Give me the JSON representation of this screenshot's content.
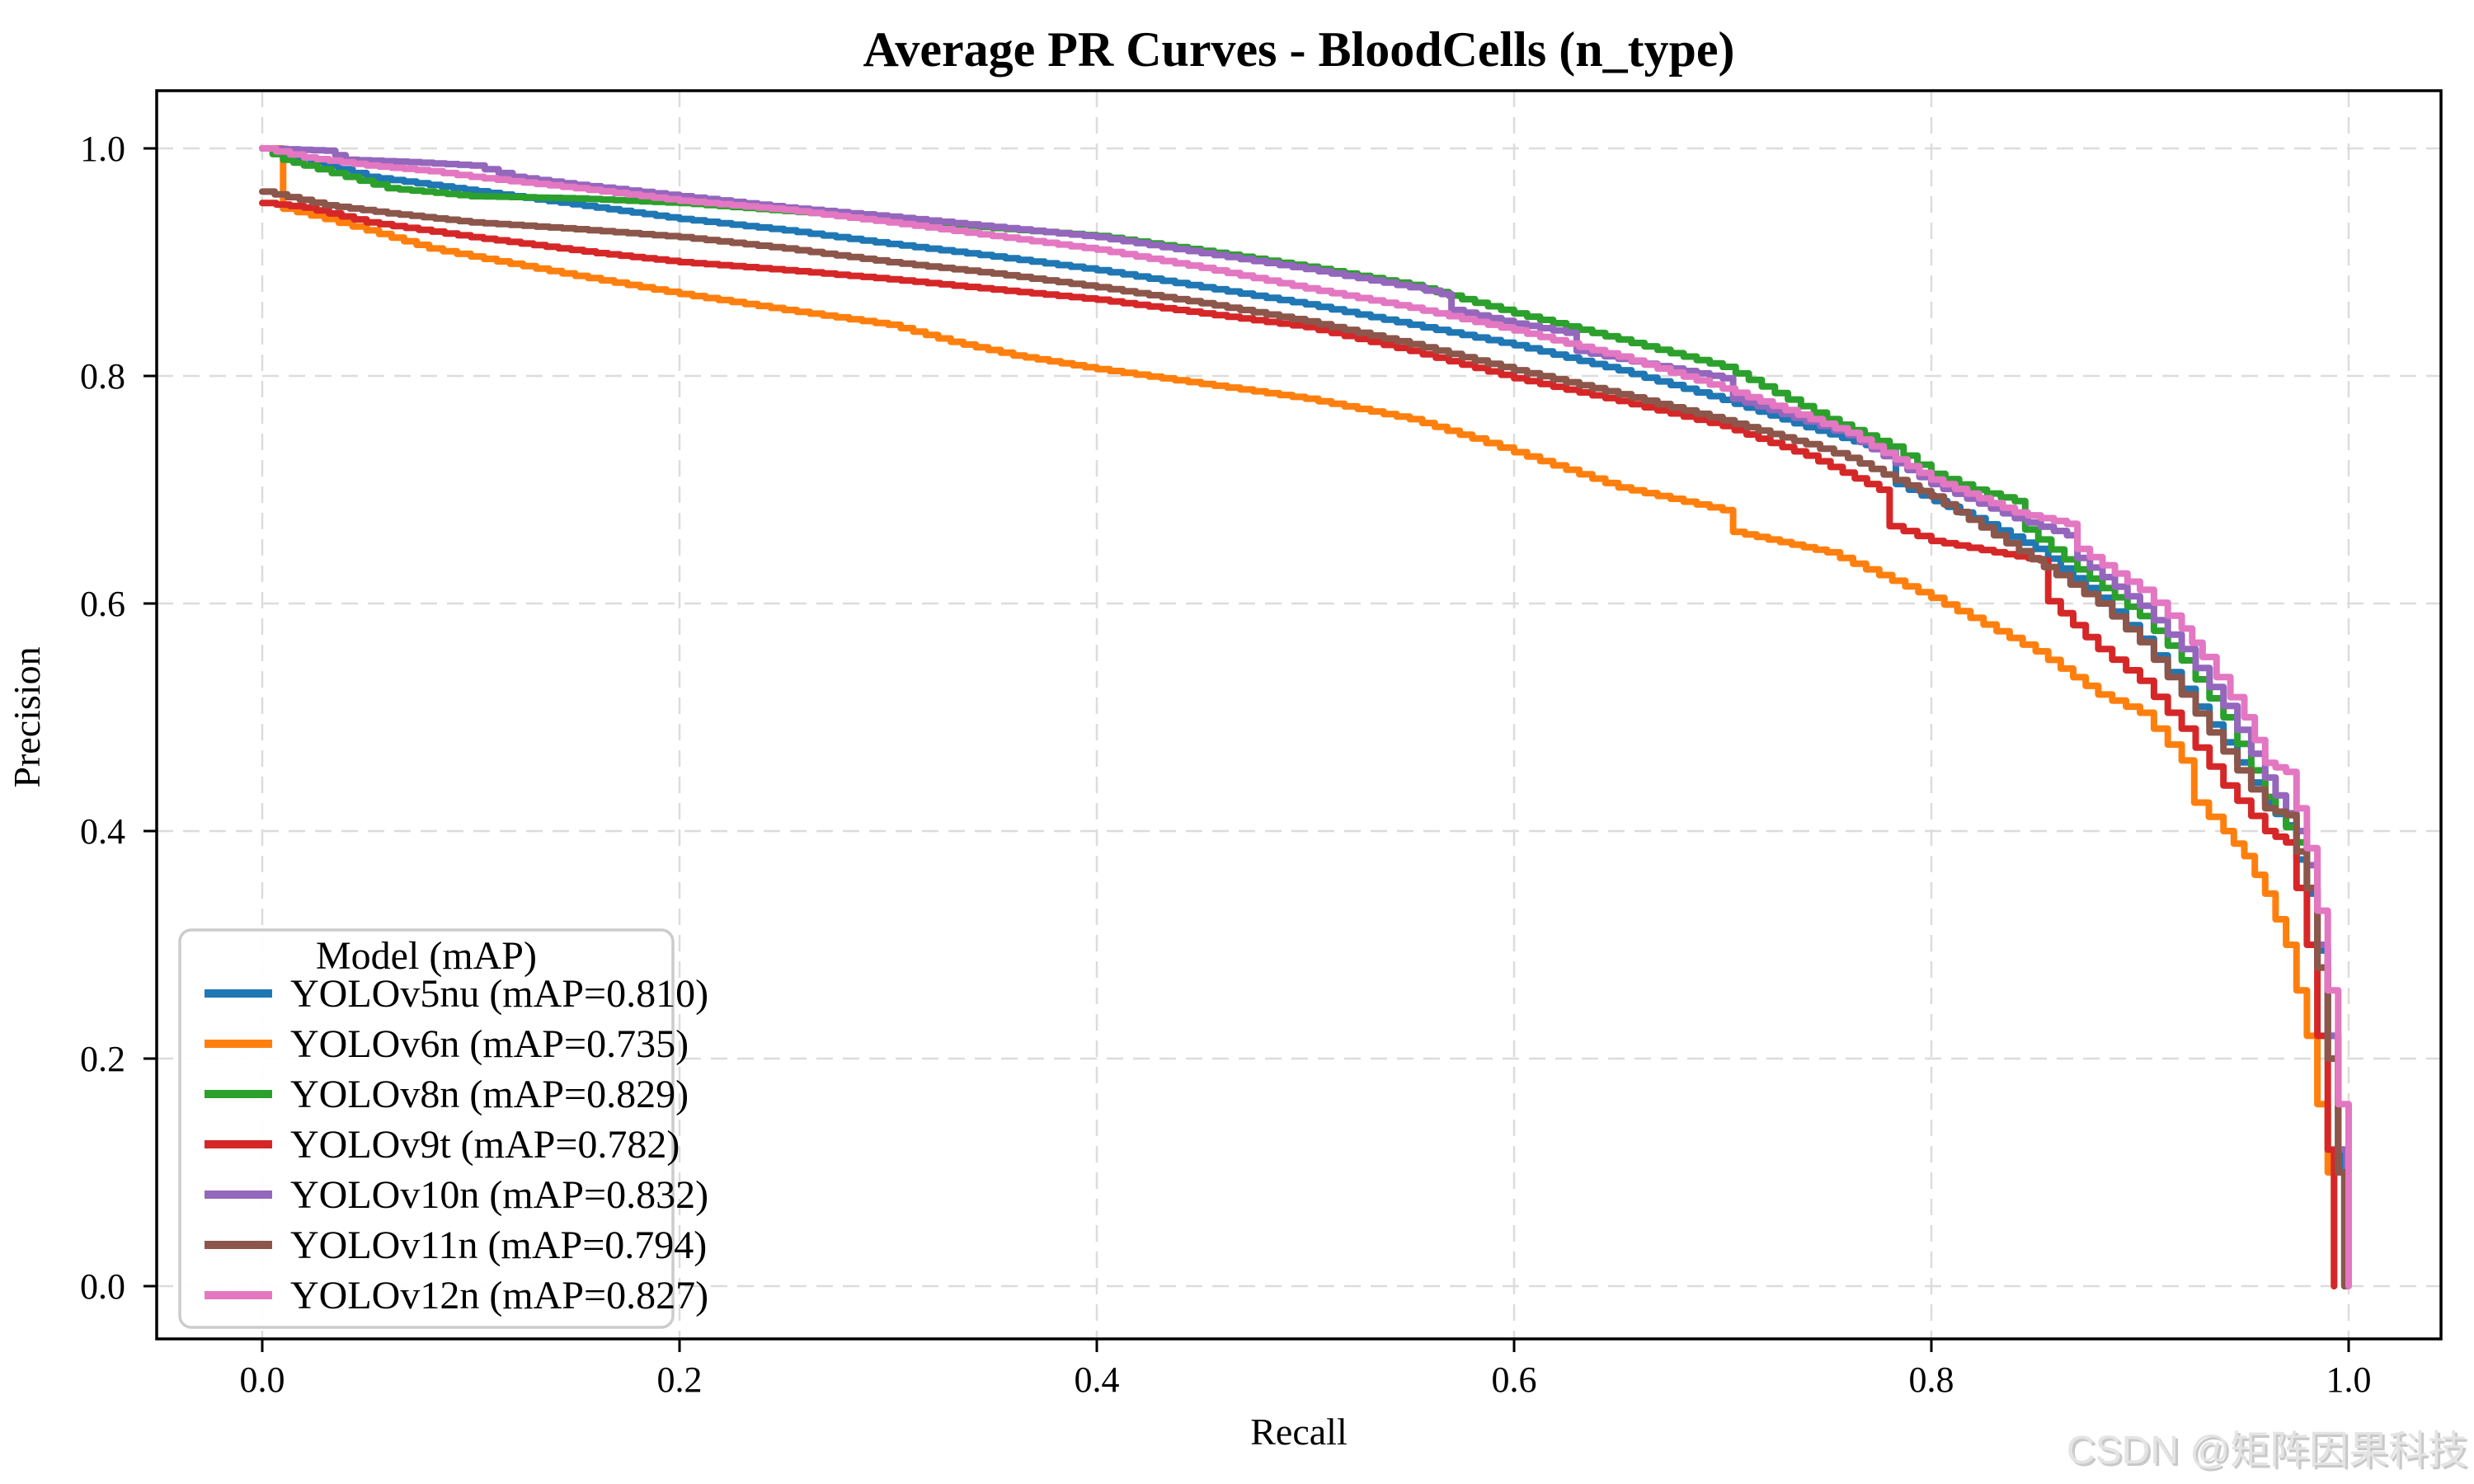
{
  "figure": {
    "title": "Average PR Curves - BloodCells (n_type)",
    "xlabel": "Recall",
    "ylabel": "Precision",
    "watermark": "CSDN @矩阵因果科技"
  },
  "legend": {
    "title": "Model (mAP)",
    "entries": [
      {
        "label": "YOLOv5nu (mAP=0.810)",
        "color": "#1f77b4"
      },
      {
        "label": "YOLOv6n (mAP=0.735)",
        "color": "#ff7f0e"
      },
      {
        "label": "YOLOv8n (mAP=0.829)",
        "color": "#2ca02c"
      },
      {
        "label": "YOLOv9t (mAP=0.782)",
        "color": "#d62728"
      },
      {
        "label": "YOLOv10n (mAP=0.832)",
        "color": "#9467bd"
      },
      {
        "label": "YOLOv11n (mAP=0.794)",
        "color": "#8c564b"
      },
      {
        "label": "YOLOv12n (mAP=0.827)",
        "color": "#e377c2"
      }
    ]
  },
  "colors": {
    "grid": "#dcdcdc",
    "spine": "#000000",
    "watermark_light": "#e4e4e4",
    "watermark_shadow": "#c9c9c9"
  },
  "chart_data": {
    "type": "line",
    "title": "Average PR Curves - BloodCells (n_type)",
    "xlabel": "Recall",
    "ylabel": "Precision",
    "xlim": [
      -0.05,
      1.05
    ],
    "ylim": [
      -0.05,
      1.05
    ],
    "x_ticks": [
      0.0,
      0.2,
      0.4,
      0.6,
      0.8,
      1.0
    ],
    "y_ticks": [
      0.0,
      0.2,
      0.4,
      0.6,
      0.8,
      1.0
    ],
    "grid": true,
    "grid_style": "dashed",
    "legend_position": "lower left",
    "curve_style": "precision-recall staircase",
    "series": [
      {
        "name": "YOLOv5nu",
        "mAP": 0.81,
        "color": "#1f77b4",
        "points": [
          [
            0,
            1.0
          ],
          [
            0.01,
            0.995
          ],
          [
            0.03,
            0.985
          ],
          [
            0.05,
            0.975
          ],
          [
            0.08,
            0.968
          ],
          [
            0.12,
            0.958
          ],
          [
            0.16,
            0.948
          ],
          [
            0.2,
            0.938
          ],
          [
            0.25,
            0.928
          ],
          [
            0.3,
            0.916
          ],
          [
            0.35,
            0.905
          ],
          [
            0.4,
            0.893
          ],
          [
            0.45,
            0.878
          ],
          [
            0.5,
            0.863
          ],
          [
            0.55,
            0.845
          ],
          [
            0.6,
            0.827
          ],
          [
            0.65,
            0.805
          ],
          [
            0.7,
            0.779
          ],
          [
            0.74,
            0.755
          ],
          [
            0.78,
            0.733
          ],
          [
            0.783,
            0.705
          ],
          [
            0.82,
            0.675
          ],
          [
            0.85,
            0.648
          ],
          [
            0.88,
            0.605
          ],
          [
            0.9,
            0.569
          ],
          [
            0.92,
            0.525
          ],
          [
            0.94,
            0.478
          ],
          [
            0.96,
            0.425
          ],
          [
            0.97,
            0.405
          ],
          [
            0.98,
            0.345
          ],
          [
            0.985,
            0.295
          ],
          [
            0.99,
            0.22
          ],
          [
            0.995,
            0.12
          ],
          [
            0.998,
            0.0
          ]
        ]
      },
      {
        "name": "YOLOv6n",
        "mAP": 0.735,
        "color": "#ff7f0e",
        "points": [
          [
            0,
            1.0
          ],
          [
            0.008,
            1.0
          ],
          [
            0.01,
            0.947
          ],
          [
            0.03,
            0.938
          ],
          [
            0.05,
            0.928
          ],
          [
            0.08,
            0.912
          ],
          [
            0.1,
            0.905
          ],
          [
            0.15,
            0.888
          ],
          [
            0.2,
            0.872
          ],
          [
            0.25,
            0.858
          ],
          [
            0.3,
            0.845
          ],
          [
            0.33,
            0.83
          ],
          [
            0.36,
            0.818
          ],
          [
            0.4,
            0.806
          ],
          [
            0.45,
            0.793
          ],
          [
            0.5,
            0.78
          ],
          [
            0.55,
            0.762
          ],
          [
            0.58,
            0.745
          ],
          [
            0.6,
            0.733
          ],
          [
            0.65,
            0.702
          ],
          [
            0.7,
            0.682
          ],
          [
            0.705,
            0.663
          ],
          [
            0.75,
            0.645
          ],
          [
            0.8,
            0.605
          ],
          [
            0.85,
            0.558
          ],
          [
            0.88,
            0.52
          ],
          [
            0.9,
            0.504
          ],
          [
            0.92,
            0.462
          ],
          [
            0.926,
            0.425
          ],
          [
            0.94,
            0.4
          ],
          [
            0.95,
            0.378
          ],
          [
            0.96,
            0.345
          ],
          [
            0.97,
            0.3
          ],
          [
            0.98,
            0.22
          ],
          [
            0.99,
            0.1
          ],
          [
            0.993,
            0.0
          ]
        ]
      },
      {
        "name": "YOLOv8n",
        "mAP": 0.829,
        "color": "#2ca02c",
        "points": [
          [
            0,
            1.0
          ],
          [
            0.01,
            0.99
          ],
          [
            0.02,
            0.985
          ],
          [
            0.04,
            0.975
          ],
          [
            0.06,
            0.965
          ],
          [
            0.1,
            0.958
          ],
          [
            0.15,
            0.956
          ],
          [
            0.2,
            0.952
          ],
          [
            0.25,
            0.945
          ],
          [
            0.3,
            0.938
          ],
          [
            0.35,
            0.93
          ],
          [
            0.4,
            0.923
          ],
          [
            0.45,
            0.91
          ],
          [
            0.5,
            0.896
          ],
          [
            0.55,
            0.88
          ],
          [
            0.6,
            0.855
          ],
          [
            0.65,
            0.832
          ],
          [
            0.7,
            0.808
          ],
          [
            0.75,
            0.762
          ],
          [
            0.78,
            0.738
          ],
          [
            0.8,
            0.714
          ],
          [
            0.82,
            0.7
          ],
          [
            0.84,
            0.69
          ],
          [
            0.845,
            0.665
          ],
          [
            0.87,
            0.63
          ],
          [
            0.9,
            0.589
          ],
          [
            0.92,
            0.55
          ],
          [
            0.94,
            0.5
          ],
          [
            0.96,
            0.43
          ],
          [
            0.975,
            0.39
          ],
          [
            0.98,
            0.35
          ],
          [
            0.985,
            0.28
          ],
          [
            0.99,
            0.2
          ],
          [
            0.995,
            0.1
          ],
          [
            0.998,
            0.0
          ]
        ]
      },
      {
        "name": "YOLOv9t",
        "mAP": 0.782,
        "color": "#d62728",
        "points": [
          [
            0,
            0.952
          ],
          [
            0.02,
            0.948
          ],
          [
            0.05,
            0.935
          ],
          [
            0.1,
            0.922
          ],
          [
            0.16,
            0.908
          ],
          [
            0.2,
            0.9
          ],
          [
            0.25,
            0.893
          ],
          [
            0.3,
            0.885
          ],
          [
            0.35,
            0.876
          ],
          [
            0.4,
            0.867
          ],
          [
            0.45,
            0.855
          ],
          [
            0.5,
            0.843
          ],
          [
            0.55,
            0.822
          ],
          [
            0.6,
            0.798
          ],
          [
            0.65,
            0.778
          ],
          [
            0.7,
            0.756
          ],
          [
            0.74,
            0.73
          ],
          [
            0.775,
            0.7
          ],
          [
            0.78,
            0.668
          ],
          [
            0.8,
            0.655
          ],
          [
            0.83,
            0.645
          ],
          [
            0.852,
            0.638
          ],
          [
            0.856,
            0.602
          ],
          [
            0.88,
            0.56
          ],
          [
            0.9,
            0.532
          ],
          [
            0.92,
            0.49
          ],
          [
            0.94,
            0.44
          ],
          [
            0.96,
            0.4
          ],
          [
            0.97,
            0.39
          ],
          [
            0.975,
            0.35
          ],
          [
            0.98,
            0.3
          ],
          [
            0.985,
            0.22
          ],
          [
            0.99,
            0.12
          ],
          [
            0.993,
            0.0
          ]
        ]
      },
      {
        "name": "YOLOv10n",
        "mAP": 0.832,
        "color": "#9467bd",
        "points": [
          [
            0,
            1.0
          ],
          [
            0.03,
            0.998
          ],
          [
            0.04,
            0.99
          ],
          [
            0.07,
            0.988
          ],
          [
            0.1,
            0.985
          ],
          [
            0.12,
            0.975
          ],
          [
            0.15,
            0.968
          ],
          [
            0.2,
            0.958
          ],
          [
            0.25,
            0.948
          ],
          [
            0.3,
            0.94
          ],
          [
            0.35,
            0.931
          ],
          [
            0.4,
            0.922
          ],
          [
            0.45,
            0.908
          ],
          [
            0.5,
            0.894
          ],
          [
            0.55,
            0.878
          ],
          [
            0.565,
            0.872
          ],
          [
            0.57,
            0.858
          ],
          [
            0.6,
            0.846
          ],
          [
            0.625,
            0.838
          ],
          [
            0.63,
            0.822
          ],
          [
            0.65,
            0.815
          ],
          [
            0.7,
            0.798
          ],
          [
            0.705,
            0.78
          ],
          [
            0.74,
            0.76
          ],
          [
            0.76,
            0.748
          ],
          [
            0.8,
            0.705
          ],
          [
            0.84,
            0.675
          ],
          [
            0.865,
            0.66
          ],
          [
            0.87,
            0.64
          ],
          [
            0.9,
            0.598
          ],
          [
            0.92,
            0.56
          ],
          [
            0.94,
            0.51
          ],
          [
            0.96,
            0.447
          ],
          [
            0.975,
            0.4
          ],
          [
            0.98,
            0.37
          ],
          [
            0.985,
            0.3
          ],
          [
            0.99,
            0.22
          ],
          [
            0.995,
            0.12
          ],
          [
            0.999,
            0.0
          ]
        ]
      },
      {
        "name": "YOLOv11n",
        "mAP": 0.794,
        "color": "#8c564b",
        "points": [
          [
            0,
            0.962
          ],
          [
            0.03,
            0.95
          ],
          [
            0.06,
            0.943
          ],
          [
            0.1,
            0.935
          ],
          [
            0.15,
            0.929
          ],
          [
            0.2,
            0.922
          ],
          [
            0.25,
            0.912
          ],
          [
            0.3,
            0.9
          ],
          [
            0.35,
            0.89
          ],
          [
            0.4,
            0.878
          ],
          [
            0.45,
            0.864
          ],
          [
            0.5,
            0.848
          ],
          [
            0.55,
            0.828
          ],
          [
            0.6,
            0.805
          ],
          [
            0.65,
            0.784
          ],
          [
            0.7,
            0.761
          ],
          [
            0.74,
            0.74
          ],
          [
            0.76,
            0.728
          ],
          [
            0.8,
            0.694
          ],
          [
            0.83,
            0.66
          ],
          [
            0.86,
            0.625
          ],
          [
            0.88,
            0.6
          ],
          [
            0.9,
            0.566
          ],
          [
            0.92,
            0.52
          ],
          [
            0.94,
            0.47
          ],
          [
            0.96,
            0.42
          ],
          [
            0.97,
            0.414
          ],
          [
            0.98,
            0.35
          ],
          [
            0.985,
            0.28
          ],
          [
            0.99,
            0.2
          ],
          [
            0.995,
            0.1
          ],
          [
            0.998,
            0.0
          ]
        ]
      },
      {
        "name": "YOLOv12n",
        "mAP": 0.827,
        "color": "#e377c2",
        "points": [
          [
            0,
            1.0
          ],
          [
            0.02,
            0.992
          ],
          [
            0.05,
            0.985
          ],
          [
            0.08,
            0.98
          ],
          [
            0.1,
            0.975
          ],
          [
            0.15,
            0.965
          ],
          [
            0.2,
            0.954
          ],
          [
            0.25,
            0.946
          ],
          [
            0.3,
            0.935
          ],
          [
            0.35,
            0.923
          ],
          [
            0.4,
            0.911
          ],
          [
            0.45,
            0.895
          ],
          [
            0.5,
            0.877
          ],
          [
            0.55,
            0.86
          ],
          [
            0.6,
            0.84
          ],
          [
            0.65,
            0.817
          ],
          [
            0.7,
            0.789
          ],
          [
            0.73,
            0.77
          ],
          [
            0.76,
            0.75
          ],
          [
            0.8,
            0.709
          ],
          [
            0.84,
            0.68
          ],
          [
            0.865,
            0.67
          ],
          [
            0.87,
            0.648
          ],
          [
            0.9,
            0.612
          ],
          [
            0.92,
            0.578
          ],
          [
            0.93,
            0.553
          ],
          [
            0.95,
            0.5
          ],
          [
            0.96,
            0.46
          ],
          [
            0.97,
            0.452
          ],
          [
            0.975,
            0.42
          ],
          [
            0.98,
            0.385
          ],
          [
            0.985,
            0.33
          ],
          [
            0.99,
            0.26
          ],
          [
            0.995,
            0.16
          ],
          [
            1.0,
            0.0
          ]
        ]
      }
    ]
  }
}
